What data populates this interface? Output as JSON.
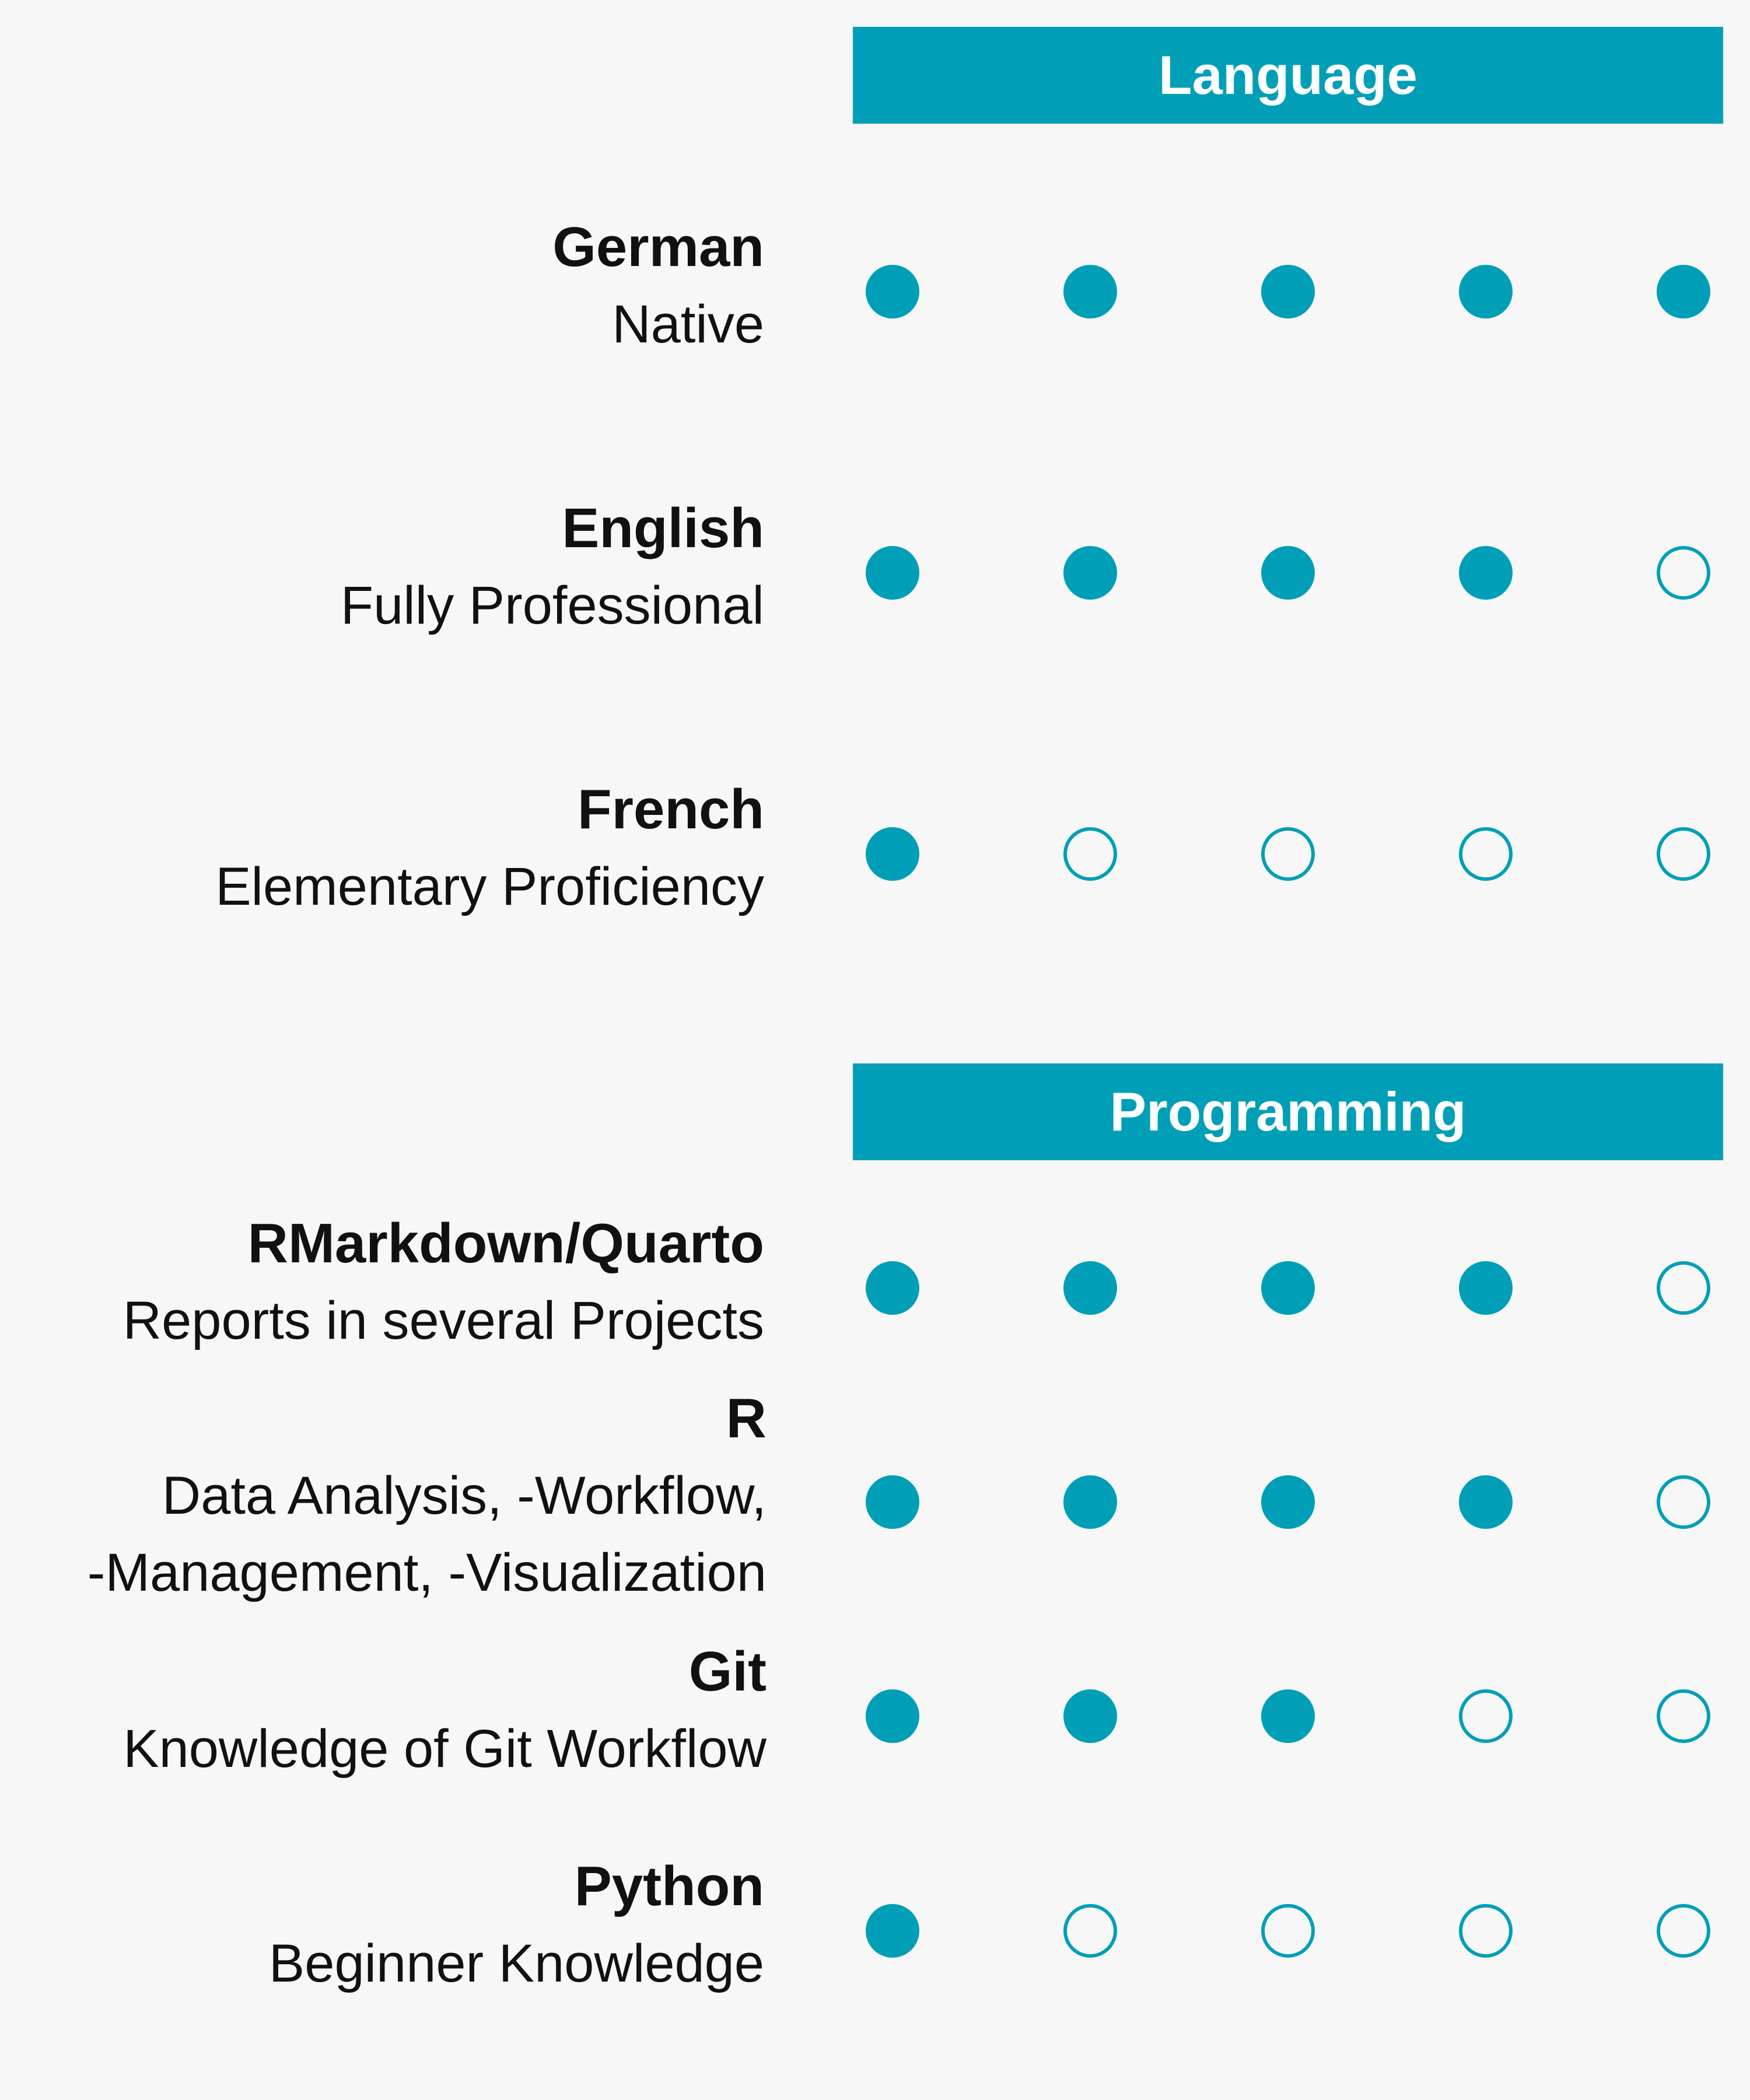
{
  "chart_data": {
    "type": "dot-rating",
    "max_level": 5,
    "colors": {
      "accent": "#009fb7",
      "background": "#f7f7f7",
      "text": "#111111",
      "header_text": "#ffffff"
    },
    "sections": [
      {
        "title": "Language",
        "skills": [
          {
            "name": "German",
            "description": [
              "Native"
            ],
            "level": 5
          },
          {
            "name": "English",
            "description": [
              "Fully Professional"
            ],
            "level": 4
          },
          {
            "name": "French",
            "description": [
              "Elementary Proficiency"
            ],
            "level": 1
          }
        ]
      },
      {
        "title": "Programming",
        "skills": [
          {
            "name": "RMarkdown/Quarto",
            "description": [
              "Reports in several Projects"
            ],
            "level": 4
          },
          {
            "name": "R",
            "description": [
              "Data Analysis, -Workflow,",
              "-Management, -Visualization"
            ],
            "level": 4
          },
          {
            "name": "Git",
            "description": [
              "Knowledge of Git Workflow"
            ],
            "level": 3
          },
          {
            "name": "Python",
            "description": [
              "Beginner Knowledge"
            ],
            "level": 1
          }
        ]
      }
    ]
  }
}
